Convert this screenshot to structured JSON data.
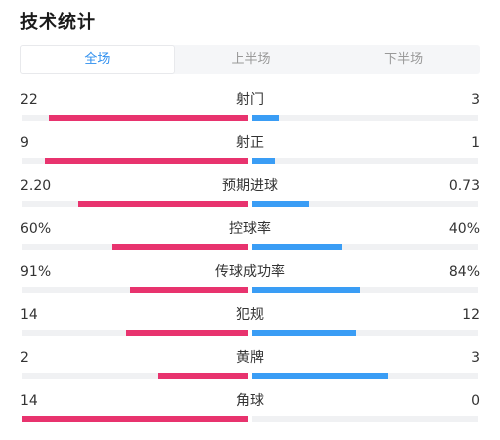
{
  "title": "技术统计",
  "tabs": [
    {
      "label": "全场",
      "active": true
    },
    {
      "label": "上半场",
      "active": false
    },
    {
      "label": "下半场",
      "active": false
    }
  ],
  "colors": {
    "home": "#e8336e",
    "away": "#3a9df5",
    "tab_active": "#2f8fef"
  },
  "stats": [
    {
      "label": "射门",
      "home": "22",
      "away": "3",
      "home_frac": 0.88,
      "away_frac": 0.12
    },
    {
      "label": "射正",
      "home": "9",
      "away": "1",
      "home_frac": 0.9,
      "away_frac": 0.1
    },
    {
      "label": "预期进球",
      "home": "2.20",
      "away": "0.73",
      "home_frac": 0.75,
      "away_frac": 0.25
    },
    {
      "label": "控球率",
      "home": "60%",
      "away": "40%",
      "home_frac": 0.6,
      "away_frac": 0.4
    },
    {
      "label": "传球成功率",
      "home": "91%",
      "away": "84%",
      "home_frac": 0.52,
      "away_frac": 0.48
    },
    {
      "label": "犯规",
      "home": "14",
      "away": "12",
      "home_frac": 0.54,
      "away_frac": 0.46
    },
    {
      "label": "黄牌",
      "home": "2",
      "away": "3",
      "home_frac": 0.4,
      "away_frac": 0.6
    },
    {
      "label": "角球",
      "home": "14",
      "away": "0",
      "home_frac": 1.0,
      "away_frac": 0.0
    }
  ]
}
